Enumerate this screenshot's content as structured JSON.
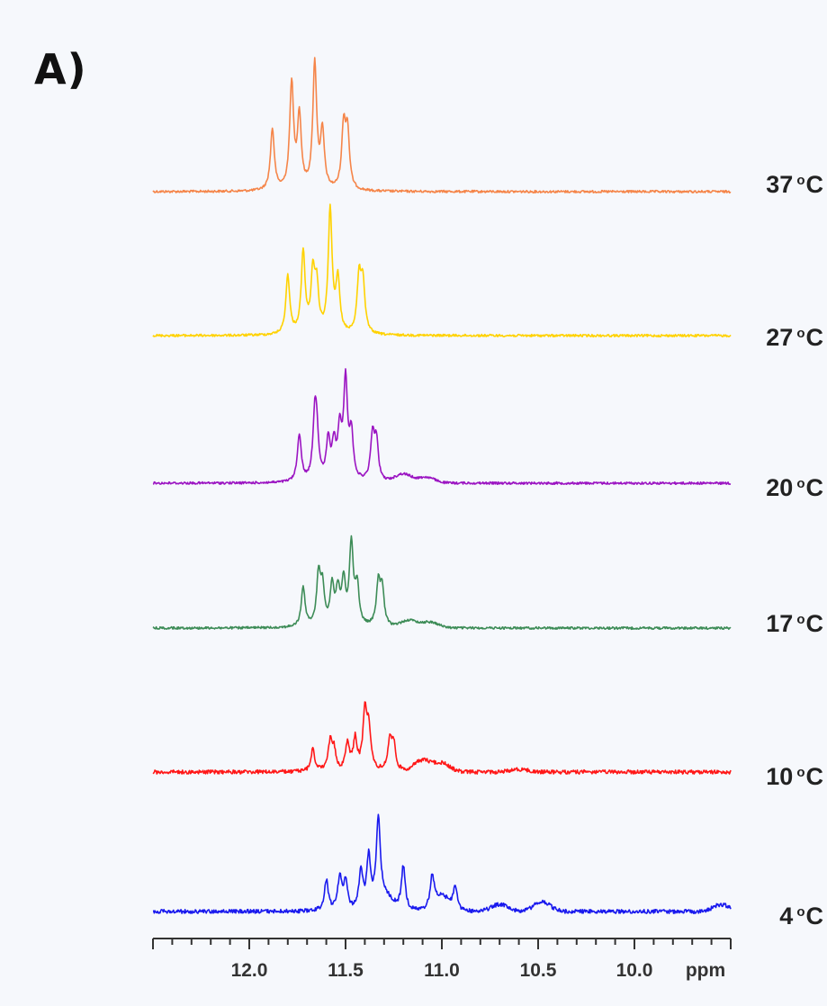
{
  "panel_label": "A)",
  "chart_data": {
    "type": "line",
    "title": "",
    "xlabel": "ppm",
    "x_reversed": true,
    "xlim": [
      12.5,
      9.5
    ],
    "x_ticks": [
      12.0,
      11.5,
      11.0,
      10.5,
      10.0
    ],
    "x_tick_labels": [
      "12.0",
      "11.5",
      "11.0",
      "10.5",
      "10.0"
    ],
    "grid": false,
    "legend": "labels at right end of each trace",
    "series": [
      {
        "name": "37 oC",
        "temp": "37",
        "unit_sup": "o",
        "unit": "C",
        "color": "#f58549",
        "peaks": [
          [
            11.88,
            0.44
          ],
          [
            11.78,
            0.76
          ],
          [
            11.74,
            0.52
          ],
          [
            11.66,
            0.9
          ],
          [
            11.62,
            0.4
          ],
          [
            11.51,
            0.44
          ],
          [
            11.49,
            0.4
          ]
        ],
        "humps": []
      },
      {
        "name": "27 oC",
        "temp": "27",
        "unit_sup": "o",
        "unit": "C",
        "color": "#ffd200",
        "peaks": [
          [
            11.8,
            0.42
          ],
          [
            11.72,
            0.58
          ],
          [
            11.67,
            0.4
          ],
          [
            11.65,
            0.32
          ],
          [
            11.58,
            0.88
          ],
          [
            11.54,
            0.38
          ],
          [
            11.43,
            0.4
          ],
          [
            11.41,
            0.36
          ]
        ],
        "humps": []
      },
      {
        "name": "20 oC",
        "temp": "20",
        "unit_sup": "o",
        "unit": "C",
        "color": "#9b14c2",
        "peaks": [
          [
            11.74,
            0.34
          ],
          [
            11.66,
            0.4
          ],
          [
            11.65,
            0.3
          ],
          [
            11.59,
            0.28
          ],
          [
            11.56,
            0.24
          ],
          [
            11.53,
            0.34
          ],
          [
            11.5,
            0.7
          ],
          [
            11.47,
            0.32
          ],
          [
            11.36,
            0.32
          ],
          [
            11.34,
            0.28
          ]
        ],
        "humps": [
          [
            11.2,
            0.06
          ],
          [
            11.08,
            0.04
          ]
        ]
      },
      {
        "name": "17 oC",
        "temp": "17",
        "unit_sup": "o",
        "unit": "C",
        "color": "#3d8c57",
        "peaks": [
          [
            11.72,
            0.28
          ],
          [
            11.64,
            0.36
          ],
          [
            11.62,
            0.26
          ],
          [
            11.57,
            0.28
          ],
          [
            11.54,
            0.24
          ],
          [
            11.51,
            0.3
          ],
          [
            11.47,
            0.58
          ],
          [
            11.44,
            0.28
          ],
          [
            11.33,
            0.3
          ],
          [
            11.31,
            0.26
          ]
        ],
        "humps": [
          [
            11.17,
            0.05
          ],
          [
            11.06,
            0.04
          ]
        ]
      },
      {
        "name": "10 oC",
        "temp": "10",
        "unit_sup": "o",
        "unit": "C",
        "color": "#ff1818",
        "peaks": [
          [
            11.67,
            0.16
          ],
          [
            11.58,
            0.2
          ],
          [
            11.56,
            0.14
          ],
          [
            11.49,
            0.2
          ],
          [
            11.45,
            0.22
          ],
          [
            11.4,
            0.4
          ],
          [
            11.38,
            0.3
          ],
          [
            11.27,
            0.22
          ],
          [
            11.25,
            0.18
          ]
        ],
        "humps": [
          [
            11.1,
            0.08
          ],
          [
            11.0,
            0.06
          ],
          [
            10.6,
            0.02
          ]
        ]
      },
      {
        "name": "4 oC",
        "temp": "4",
        "unit_sup": "o",
        "unit": "C",
        "color": "#1a1aee",
        "peaks": [
          [
            11.6,
            0.22
          ],
          [
            11.53,
            0.24
          ],
          [
            11.5,
            0.2
          ],
          [
            11.42,
            0.28
          ],
          [
            11.38,
            0.36
          ],
          [
            11.33,
            0.6
          ],
          [
            11.2,
            0.32
          ],
          [
            11.05,
            0.22
          ],
          [
            10.93,
            0.16
          ]
        ],
        "humps": [
          [
            11.3,
            0.1
          ],
          [
            11.0,
            0.1
          ],
          [
            10.7,
            0.05
          ],
          [
            10.48,
            0.07
          ],
          [
            9.55,
            0.05
          ]
        ]
      }
    ]
  }
}
